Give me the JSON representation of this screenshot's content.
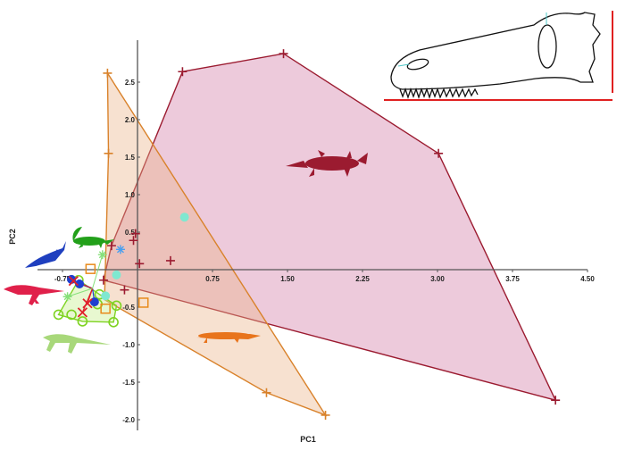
{
  "chart_data": {
    "type": "scatter",
    "xlabel": "PC1",
    "ylabel": "PC2",
    "x_ticks": [
      "-0.75",
      "0.75",
      "1.50",
      "2.25",
      "3.00",
      "3.75",
      "4.50"
    ],
    "y_ticks": [
      "2.5",
      "2.0",
      "1.5",
      "1.0",
      "0.5",
      "-0.5",
      "-1.0",
      "-1.5",
      "-2.0"
    ],
    "xlim": [
      -1.4,
      4.6
    ],
    "ylim": [
      -2.1,
      3.0
    ],
    "grid": false,
    "groups": [
      {
        "color": "#9b1b30",
        "fill": "#d27aa6",
        "marker": "plus",
        "hull": [
          [
            0.45,
            2.64
          ],
          [
            1.46,
            2.88
          ],
          [
            3.01,
            1.55
          ],
          [
            4.18,
            -1.74
          ],
          [
            -0.34,
            -0.14
          ],
          [
            -0.26,
            0.32
          ]
        ],
        "points": [
          [
            0.45,
            2.64
          ],
          [
            1.46,
            2.88
          ],
          [
            3.01,
            1.55
          ],
          [
            4.18,
            -1.74
          ],
          [
            -0.34,
            -0.14
          ],
          [
            -0.26,
            0.32
          ],
          [
            -0.02,
            0.48
          ],
          [
            -0.04,
            0.39
          ],
          [
            0.02,
            0.08
          ],
          [
            0.33,
            0.12
          ],
          [
            -0.13,
            -0.27
          ]
        ]
      },
      {
        "color": "#d9822b",
        "fill": "#eab48a",
        "marker": "plus",
        "hull": [
          [
            -0.3,
            2.62
          ],
          [
            1.88,
            -1.94
          ],
          [
            1.29,
            -1.64
          ],
          [
            -0.33,
            -0.4
          ],
          [
            -0.29,
            1.55
          ]
        ],
        "points": [
          [
            -0.3,
            2.62
          ],
          [
            -0.29,
            1.55
          ],
          [
            1.29,
            -1.64
          ],
          [
            1.88,
            -1.94
          ]
        ]
      },
      {
        "color": "#7ed321",
        "fill": "#c6ee8a",
        "marker": "circle-open",
        "hull": [
          [
            -0.59,
            -0.14
          ],
          [
            -0.38,
            -0.33
          ],
          [
            -0.21,
            -0.48
          ],
          [
            -0.24,
            -0.7
          ],
          [
            -0.55,
            -0.69
          ],
          [
            -0.79,
            -0.6
          ]
        ],
        "points": [
          [
            -0.59,
            -0.14
          ],
          [
            -0.38,
            -0.33
          ],
          [
            -0.21,
            -0.48
          ],
          [
            -0.24,
            -0.7
          ],
          [
            -0.55,
            -0.69
          ],
          [
            -0.79,
            -0.6
          ],
          [
            -0.66,
            -0.6
          ],
          [
            -0.4,
            -0.46
          ]
        ]
      },
      {
        "color": "#e88a1a",
        "marker": "square-open",
        "points": [
          [
            -0.47,
            0.01
          ],
          [
            -0.32,
            -0.52
          ],
          [
            0.06,
            -0.44
          ]
        ]
      },
      {
        "color": "#1f3fd1",
        "marker": "circle",
        "points": [
          [
            -0.66,
            -0.13
          ],
          [
            -0.58,
            -0.19
          ],
          [
            -0.43,
            -0.43
          ]
        ]
      },
      {
        "color": "#e0202a",
        "marker": "x",
        "points": [
          [
            -0.64,
            -0.15
          ],
          [
            -0.5,
            -0.45
          ],
          [
            -0.55,
            -0.57
          ]
        ]
      },
      {
        "color": "#7fe8d0",
        "marker": "circle",
        "points": [
          [
            0.47,
            0.7
          ],
          [
            -0.21,
            -0.07
          ],
          [
            -0.32,
            -0.35
          ]
        ]
      },
      {
        "color": "#4a9ff0",
        "marker": "asterisk",
        "points": [
          [
            -0.17,
            0.27
          ]
        ]
      },
      {
        "color": "#86e07a",
        "marker": "asterisk",
        "points": [
          [
            -0.35,
            0.2
          ],
          [
            -0.7,
            -0.36
          ]
        ]
      }
    ]
  },
  "colors": {
    "axis": "#555555",
    "scale_bar": "#e02020",
    "skull_outline": "#111111",
    "silhouette_croc": "#9b1b30",
    "silhouette_orange": "#e8741c",
    "silhouette_green": "#22a01a",
    "silhouette_blue": "#1f3fbf",
    "silhouette_red": "#e0204a",
    "silhouette_lightgreen": "#a8d87a"
  }
}
